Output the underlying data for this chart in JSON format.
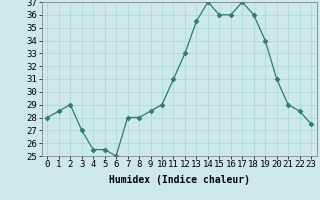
{
  "x": [
    0,
    1,
    2,
    3,
    4,
    5,
    6,
    7,
    8,
    9,
    10,
    11,
    12,
    13,
    14,
    15,
    16,
    17,
    18,
    19,
    20,
    21,
    22,
    23
  ],
  "y": [
    28,
    28.5,
    29,
    27,
    25.5,
    25.5,
    25,
    28,
    28,
    28.5,
    29,
    31,
    33,
    35.5,
    37,
    36,
    36,
    37,
    36,
    34,
    31,
    29,
    28.5,
    27.5
  ],
  "xlabel": "Humidex (Indice chaleur)",
  "ylim": [
    25,
    37
  ],
  "xlim": [
    -0.5,
    23.5
  ],
  "yticks": [
    25,
    26,
    27,
    28,
    29,
    30,
    31,
    32,
    33,
    34,
    35,
    36,
    37
  ],
  "xticks": [
    0,
    1,
    2,
    3,
    4,
    5,
    6,
    7,
    8,
    9,
    10,
    11,
    12,
    13,
    14,
    15,
    16,
    17,
    18,
    19,
    20,
    21,
    22,
    23
  ],
  "xtick_labels": [
    "0",
    "1",
    "2",
    "3",
    "4",
    "5",
    "6",
    "7",
    "8",
    "9",
    "10",
    "11",
    "12",
    "13",
    "14",
    "15",
    "16",
    "17",
    "18",
    "19",
    "20",
    "21",
    "22",
    "23"
  ],
  "line_color": "#2d7d6b",
  "marker": "D",
  "marker_size": 2.5,
  "bg_color": "#cce8e8",
  "grid_color": "#aad4d4",
  "label_fontsize": 7,
  "tick_fontsize": 6.5
}
